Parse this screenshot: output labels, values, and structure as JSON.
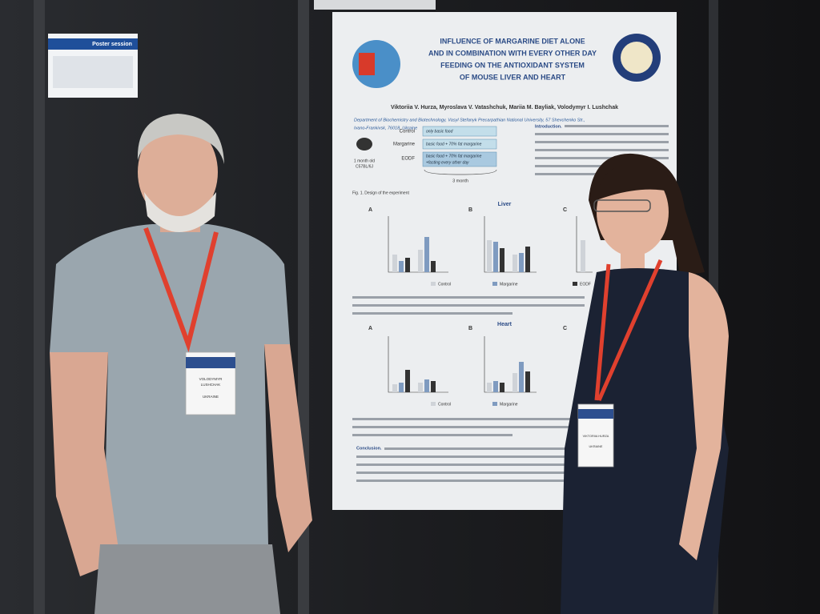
{
  "sign": {
    "title": "Poster session"
  },
  "poster": {
    "title_lines": [
      "INFLUENCE OF MARGARINE DIET ALONE",
      "AND IN COMBINATION WITH EVERY OTHER DAY",
      "FEEDING ON THE ANTIOXIDANT SYSTEM",
      "OF MOUSE LIVER AND HEART"
    ],
    "authors": "Viktoriia V. Hurza, Myroslava V. Vatashchuk, Mariia M. Bayliak, Volodymyr I. Lushchak",
    "department_lines": [
      "Department of Biochemistry and Biotechnology, Vasyl Stefanyk Precarpathian National University, 57 Shevchenko Str.,",
      "Ivano-Frankivsk, 76018, Ukraine"
    ],
    "design": {
      "groups": [
        "Control",
        "Margarine",
        "EODF"
      ],
      "diets": [
        "only basic food",
        "basic food + 70% fat margarine",
        "basic food + 70% fat margarine",
        "+fasting every other day"
      ],
      "mouse": [
        "1 month old",
        "C57BL/6J"
      ],
      "duration": "3 month",
      "caption": "Fig. 1. Design of the experiment"
    },
    "introduction": "Introduction.",
    "sections": [
      "Liver",
      "Heart"
    ],
    "panels": [
      "A",
      "B",
      "C"
    ],
    "legend": [
      "Control",
      "Margarine",
      "EODF"
    ],
    "conclusion": "Conclusion."
  },
  "badges": [
    {
      "name_lines": [
        "VOLODYMYR",
        "LUSHCHAK"
      ],
      "country": "UKRAINE"
    },
    {
      "name_lines": [
        "VIKTORIIA HURZA"
      ],
      "country": "UKRAINE"
    }
  ]
}
